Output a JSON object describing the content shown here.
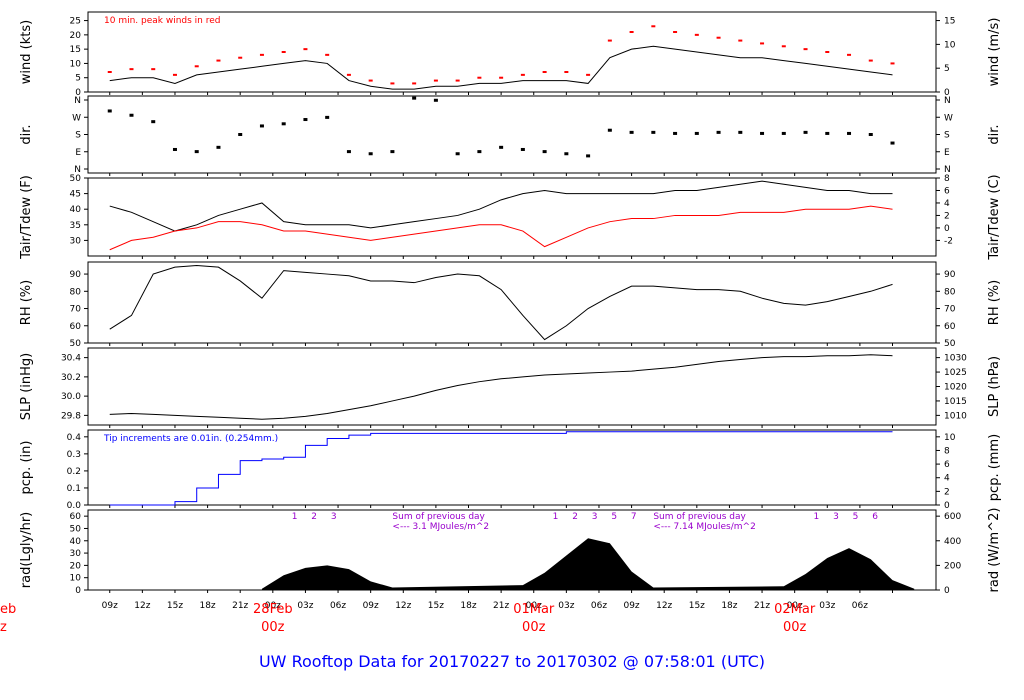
{
  "footer_title": "UW Rooftop Data for 20170227  to  20170302 @ 07:58:01  (UTC)",
  "colors": {
    "frame": "#000000",
    "peak": "#ff0000",
    "dewpoint": "#ff0000",
    "precip": "#0000ff",
    "note": "#9900cc",
    "date": "#ff0000",
    "footer": "#0000ff"
  },
  "chart_data": [
    {
      "type": "line",
      "name": "wind",
      "ylabel": "wind (kts)",
      "ylabel_right": "wind (m/s)",
      "ylim": [
        0,
        28
      ],
      "yticks": [
        0,
        5,
        10,
        15,
        20,
        25
      ],
      "yticks_right": [
        0,
        5,
        10,
        15
      ],
      "annotation": "10 min. peak winds in red",
      "x": [
        0,
        2,
        4,
        6,
        8,
        10,
        12,
        14,
        16,
        18,
        20,
        22,
        24,
        26,
        28,
        30,
        32,
        34,
        36,
        38,
        40,
        42,
        44,
        46,
        48,
        50,
        52,
        54,
        56,
        58,
        60,
        62,
        64,
        66,
        68,
        70,
        72
      ],
      "series": [
        {
          "name": "wind",
          "values": [
            4,
            5,
            5,
            3,
            6,
            7,
            8,
            9,
            10,
            11,
            10,
            4,
            2,
            1,
            1,
            2,
            2,
            3,
            3,
            4,
            4,
            4,
            3,
            12,
            15,
            16,
            15,
            14,
            13,
            12,
            12,
            11,
            10,
            9,
            8,
            7,
            6
          ]
        },
        {
          "name": "peak",
          "values": [
            7,
            8,
            8,
            6,
            9,
            11,
            12,
            13,
            14,
            15,
            13,
            6,
            4,
            3,
            3,
            4,
            4,
            5,
            5,
            6,
            7,
            7,
            6,
            18,
            21,
            23,
            21,
            20,
            19,
            18,
            17,
            16,
            15,
            14,
            13,
            11,
            10
          ]
        }
      ]
    },
    {
      "type": "scatter",
      "name": "direction",
      "ylabel": "dir.",
      "ylabel_right": "dir.",
      "yticks_labels": [
        "N",
        "W",
        "S",
        "E",
        "N"
      ],
      "x": [
        0,
        2,
        4,
        6,
        8,
        10,
        12,
        14,
        16,
        18,
        20,
        22,
        24,
        26,
        28,
        30,
        32,
        34,
        36,
        38,
        40,
        42,
        44,
        46,
        48,
        50,
        52,
        54,
        56,
        58,
        60,
        62,
        64,
        66,
        68,
        70,
        72
      ],
      "values": [
        290,
        270,
        240,
        110,
        100,
        120,
        180,
        220,
        230,
        250,
        260,
        100,
        90,
        100,
        350,
        340,
        90,
        100,
        120,
        110,
        100,
        90,
        80,
        200,
        190,
        190,
        185,
        185,
        190,
        190,
        185,
        185,
        190,
        185,
        185,
        180,
        140
      ]
    },
    {
      "type": "line",
      "name": "temperature",
      "ylabel": "Tair/Tdew (F)",
      "ylabel_right": "Tair/Tdew (C)",
      "ylim": [
        25,
        50
      ],
      "yticks": [
        30,
        35,
        40,
        45,
        50
      ],
      "yticks_right": [
        -2,
        0,
        2,
        4,
        6,
        8
      ],
      "x": [
        0,
        2,
        4,
        6,
        8,
        10,
        12,
        14,
        16,
        18,
        20,
        22,
        24,
        26,
        28,
        30,
        32,
        34,
        36,
        38,
        40,
        42,
        44,
        46,
        48,
        50,
        52,
        54,
        56,
        58,
        60,
        62,
        64,
        66,
        68,
        70,
        72
      ],
      "series": [
        {
          "name": "Tair",
          "values": [
            41,
            39,
            36,
            33,
            35,
            38,
            40,
            42,
            36,
            35,
            35,
            35,
            34,
            35,
            36,
            37,
            38,
            40,
            43,
            45,
            46,
            45,
            45,
            45,
            45,
            45,
            46,
            46,
            47,
            48,
            49,
            48,
            47,
            46,
            46,
            45,
            45
          ]
        },
        {
          "name": "Tdew",
          "values": [
            27,
            30,
            31,
            33,
            34,
            36,
            36,
            35,
            33,
            33,
            32,
            31,
            30,
            31,
            32,
            33,
            34,
            35,
            35,
            33,
            28,
            31,
            34,
            36,
            37,
            37,
            38,
            38,
            38,
            39,
            39,
            39,
            40,
            40,
            40,
            41,
            40
          ]
        }
      ]
    },
    {
      "type": "line",
      "name": "rh",
      "ylabel": "RH (%)",
      "ylabel_right": "RH (%)",
      "ylim": [
        50,
        97
      ],
      "yticks": [
        50,
        60,
        70,
        80,
        90
      ],
      "yticks_right": [
        50,
        60,
        70,
        80,
        90
      ],
      "x": [
        0,
        2,
        4,
        6,
        8,
        10,
        12,
        14,
        16,
        18,
        20,
        22,
        24,
        26,
        28,
        30,
        32,
        34,
        36,
        38,
        40,
        42,
        44,
        46,
        48,
        50,
        52,
        54,
        56,
        58,
        60,
        62,
        64,
        66,
        68,
        70,
        72
      ],
      "series": [
        {
          "name": "RH",
          "values": [
            58,
            66,
            90,
            94,
            95,
            94,
            86,
            76,
            92,
            91,
            90,
            89,
            86,
            86,
            85,
            88,
            90,
            89,
            81,
            66,
            52,
            60,
            70,
            77,
            83,
            83,
            82,
            81,
            81,
            80,
            76,
            73,
            72,
            74,
            77,
            80,
            84
          ]
        }
      ]
    },
    {
      "type": "line",
      "name": "pressure",
      "ylabel": "SLP (inHg)",
      "ylabel_right": "SLP (hPa)",
      "ylim": [
        29.7,
        30.5
      ],
      "yticks": [
        29.8,
        30.0,
        30.2,
        30.4
      ],
      "yticks_labels": [
        "29.8",
        "30.0",
        "30.2",
        "30.4"
      ],
      "yticks_right": [
        1010,
        1015,
        1020,
        1025,
        1030
      ],
      "x": [
        0,
        2,
        4,
        6,
        8,
        10,
        12,
        14,
        16,
        18,
        20,
        22,
        24,
        26,
        28,
        30,
        32,
        34,
        36,
        38,
        40,
        42,
        44,
        46,
        48,
        50,
        52,
        54,
        56,
        58,
        60,
        62,
        64,
        66,
        68,
        70,
        72
      ],
      "series": [
        {
          "name": "SLP",
          "values": [
            29.81,
            29.82,
            29.81,
            29.8,
            29.79,
            29.78,
            29.77,
            29.76,
            29.77,
            29.79,
            29.82,
            29.86,
            29.9,
            29.95,
            30.0,
            30.06,
            30.11,
            30.15,
            30.18,
            30.2,
            30.22,
            30.23,
            30.24,
            30.25,
            30.26,
            30.28,
            30.3,
            30.33,
            30.36,
            30.38,
            30.4,
            30.41,
            30.41,
            30.42,
            30.42,
            30.43,
            30.42
          ]
        }
      ]
    },
    {
      "type": "line",
      "name": "precip",
      "ylabel": "pcp. (in)",
      "ylabel_right": "pcp. (mm)",
      "ylim": [
        0,
        0.44
      ],
      "yticks": [
        0.0,
        0.1,
        0.2,
        0.3,
        0.4
      ],
      "yticks_labels": [
        "0.0",
        "0.1",
        "0.2",
        "0.3",
        "0.4"
      ],
      "yticks_right": [
        0,
        2,
        4,
        6,
        8,
        10
      ],
      "annotation": "Tip increments are 0.01in. (0.254mm.)",
      "x": [
        0,
        2,
        4,
        6,
        8,
        10,
        12,
        14,
        16,
        18,
        20,
        22,
        24,
        26,
        28,
        30,
        32,
        34,
        36,
        38,
        40,
        42,
        44,
        46,
        48,
        50,
        52,
        54,
        56,
        58,
        60,
        62,
        64,
        66,
        68,
        70,
        72
      ],
      "series": [
        {
          "name": "precip",
          "values": [
            0.0,
            0.0,
            0.0,
            0.02,
            0.1,
            0.18,
            0.26,
            0.27,
            0.28,
            0.35,
            0.39,
            0.41,
            0.42,
            0.42,
            0.42,
            0.42,
            0.42,
            0.42,
            0.42,
            0.42,
            0.42,
            0.43,
            0.43,
            0.43,
            0.43,
            0.43,
            0.43,
            0.43,
            0.43,
            0.43,
            0.43,
            0.43,
            0.43,
            0.43,
            0.43,
            0.43,
            0.43
          ]
        }
      ]
    },
    {
      "type": "area",
      "name": "radiation",
      "ylabel": "rad(Lgly/hr)",
      "ylabel_right": "rad (W/m^2)",
      "ylim": [
        0,
        65
      ],
      "yticks": [
        0,
        10,
        20,
        30,
        40,
        50,
        60
      ],
      "yticks_right": [
        0,
        200,
        400,
        600
      ],
      "notes": [
        {
          "text": "Sum of previous day",
          "text2": "<--- 3.1 MJoules/m^2"
        },
        {
          "text": "Sum of previous day",
          "text2": "<--- 7.14 MJoules/m^2"
        }
      ],
      "markers": [
        {
          "day": 0,
          "labels": [
            "1",
            "2",
            "3"
          ]
        },
        {
          "day": 1,
          "labels": [
            "1",
            "2",
            "3",
            "5",
            "7"
          ]
        },
        {
          "day": 2,
          "labels": [
            "1",
            "3",
            "5",
            "6"
          ]
        }
      ],
      "x": [
        14,
        16,
        18,
        20,
        22,
        24,
        26,
        38,
        40,
        42,
        44,
        46,
        48,
        50,
        62,
        64,
        66,
        68,
        70,
        72,
        74
      ],
      "series": [
        {
          "name": "radiation",
          "values": [
            1,
            12,
            18,
            20,
            17,
            7,
            2,
            4,
            14,
            28,
            42,
            38,
            15,
            2,
            3,
            13,
            26,
            34,
            25,
            8,
            1
          ]
        }
      ]
    },
    {
      "type": "axis",
      "name": "time",
      "xticks": [
        "09z",
        "12z",
        "15z",
        "18z",
        "21z",
        "00z",
        "03z",
        "06z",
        "09z",
        "12z",
        "15z",
        "18z",
        "21z",
        "00z",
        "03z",
        "06z",
        "09z",
        "12z",
        "15z",
        "18z",
        "21z",
        "00z",
        "03z",
        "06z"
      ],
      "date_labels": [
        {
          "date": "28Feb",
          "sub": "00z"
        },
        {
          "date": "01Mar",
          "sub": "00z"
        },
        {
          "date": "02Mar",
          "sub": "00z"
        }
      ],
      "edge_label": {
        "date": "eb",
        "sub": "z"
      }
    }
  ]
}
